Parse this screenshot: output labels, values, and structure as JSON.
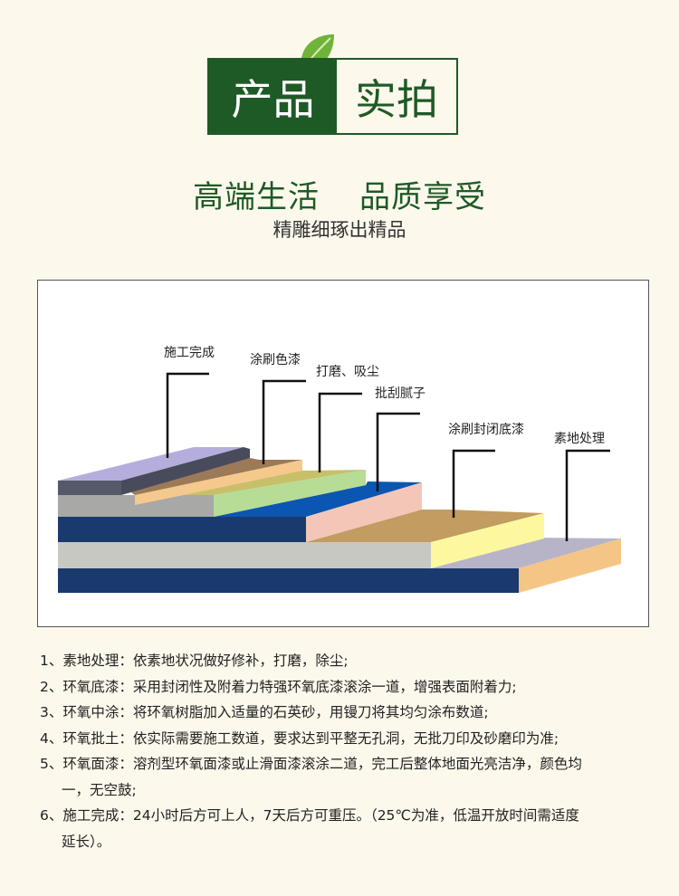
{
  "header": {
    "left": "产品",
    "right": "实拍",
    "icon": "leaf-icon"
  },
  "slogan": {
    "part1": "高端生活",
    "part2": "品质享受",
    "sub": "精雕细琢出精品"
  },
  "diagram": {
    "labels": [
      "施工完成",
      "涂刷色漆",
      "打磨、吸尘",
      "批刮腻子",
      "涂刷封闭底漆",
      "素地处理"
    ]
  },
  "steps": [
    {
      "text": "1、素地处理：依素地状况做好修补，打磨，除尘;"
    },
    {
      "text": "2、环氧底漆：采用封闭性及附着力特强环氧底漆滚涂一道，增强表面附着力;"
    },
    {
      "text": "3、环氧中涂：将环氧树脂加入适量的石英砂，用镘刀将其均匀涂布数道;"
    },
    {
      "text": "4、环氧批土：依实际需要施工数道，要求达到平整无孔洞，无批刀印及砂磨印为准;"
    },
    {
      "text": "5、环氧面漆：溶剂型环氧面漆或止滑面漆滚涂二道，完工后整体地面光亮洁净，颜色均",
      "cont": "一，无空鼓;"
    },
    {
      "text": "6、施工完成：24小时后方可上人，7天后方可重压。（25℃为准，低温开放时间需适度",
      "cont": "延长）。"
    }
  ],
  "colors": {
    "brand_green": "#1e5a26"
  }
}
